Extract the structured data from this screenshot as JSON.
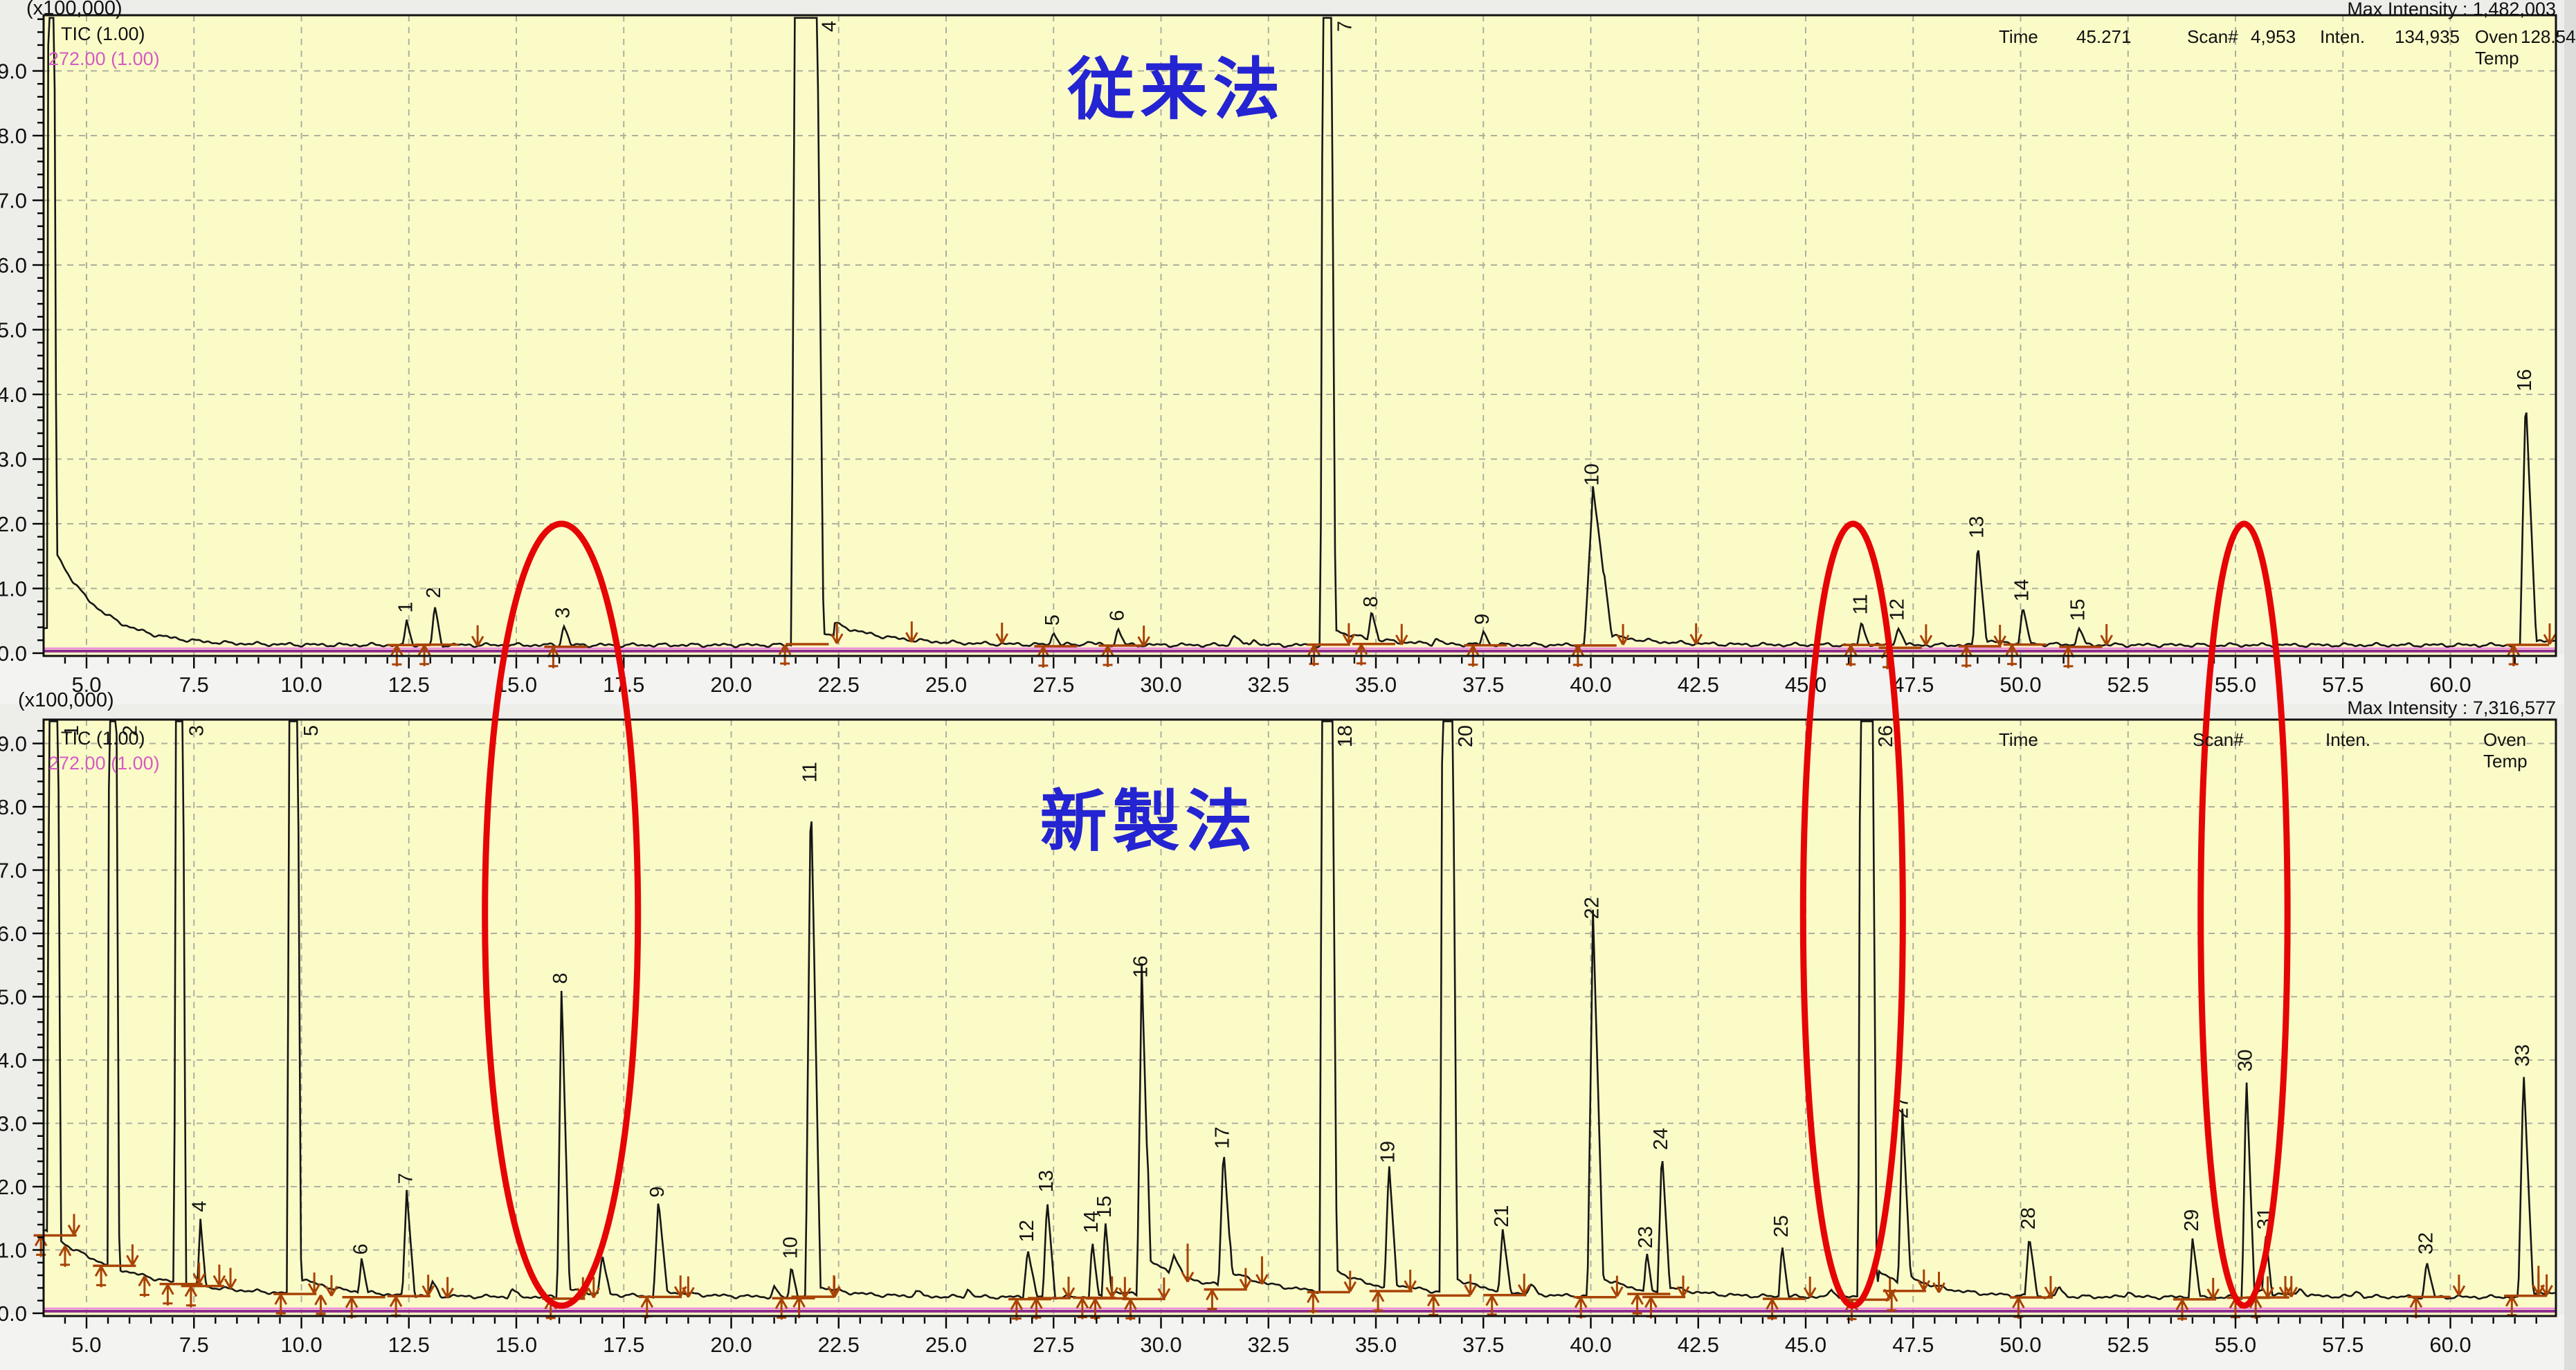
{
  "colors": {
    "plot_bg": "#FBFBC8",
    "outer_bg": "#EDEDEA",
    "strip_bg": "#F3F3F1",
    "grid": "#AFAF9E",
    "trace_black": "#161616",
    "mz_purple": "#8E2E8E",
    "mz_pink": "#EE8ADF",
    "marker_brown": "#A84305",
    "title_blue": "#2424D2",
    "highlight_red": "#E60505",
    "frame": "#111111"
  },
  "panels": [
    {
      "name": "conventional",
      "title": "従来法",
      "scale_label": "(x100,000)",
      "max_intensity": "Max Intensity : 1,482,003",
      "tic_label": "TIC (1.00)",
      "mz_label": "272.00 (1.00)",
      "info": {
        "time_label": "Time",
        "time_value": "45.271",
        "scan_label": "Scan#",
        "scan_value": "4,953",
        "inten_label": "Inten.",
        "inten_value": "134,935",
        "oven_label": "Oven Temp",
        "oven_value": "128.54"
      }
    },
    {
      "name": "new-method",
      "title": "新製法",
      "scale_label": "(x100,000)",
      "max_intensity": "Max Intensity : 7,316,577",
      "tic_label": "TIC (1.00)",
      "mz_label": "272.00 (1.00)",
      "info": {
        "time_label": "Time",
        "time_value": "",
        "scan_label": "Scan#",
        "scan_value": "",
        "inten_label": "Inten.",
        "inten_value": "",
        "oven_label": "Oven Temp",
        "oven_value": ""
      }
    }
  ],
  "x_axis": {
    "tick_labels": [
      "5.0",
      "7.5",
      "10.0",
      "12.5",
      "15.0",
      "17.5",
      "20.0",
      "22.5",
      "25.0",
      "27.5",
      "30.0",
      "32.5",
      "35.0",
      "37.5",
      "40.0",
      "42.5",
      "45.0",
      "47.5",
      "50.0",
      "52.5",
      "55.0",
      "57.5",
      "60.0"
    ],
    "minor_step": 0.5,
    "range": [
      4.0,
      62.45
    ]
  },
  "y_axis": {
    "tick_labels": [
      "0.0",
      "1.0",
      "2.0",
      "3.0",
      "4.0",
      "5.0",
      "6.0",
      "7.0",
      "8.0",
      "9.0"
    ],
    "minor_step": 0.2,
    "unit_label": "(x100,000)"
  },
  "highlights": {
    "note": "red ellipses spanning both chromatograms",
    "top_v": 2.0,
    "bottom_v": 0.12,
    "ellipses": [
      {
        "t_center": 16.05,
        "t_halfwidth": 1.78
      },
      {
        "t_center": 46.1,
        "t_halfwidth": 1.16
      },
      {
        "t_center": 55.2,
        "t_halfwidth": 1.01
      }
    ]
  },
  "chart_data": [
    {
      "type": "line",
      "title": "従来法",
      "y_scale_label": "(x100,000)",
      "max_intensity_value": "1,482,003",
      "x_range": [
        4.0,
        62.45
      ],
      "y_range": [
        0,
        9.82
      ],
      "grid": true,
      "baseline": {
        "level": 0.125,
        "solvent_amp": 1.6,
        "solvent_tau": 0.95,
        "solvent_t": 4.18,
        "start_level": 0.38,
        "lifts": [
          {
            "t": 22.4,
            "amp": 0.2,
            "tau": 1.5
          },
          {
            "t": 34.0,
            "amp": 0.07,
            "tau": 1.2
          },
          {
            "t": 40.3,
            "amp": 0.1,
            "tau": 1.2
          }
        ]
      },
      "peaks": [
        {
          "n": "",
          "t": 4.17,
          "clipped": true,
          "w": 0.05,
          "ft": 0.04
        },
        {
          "n": "1",
          "t": 12.45,
          "h": 0.38,
          "w": 0.08
        },
        {
          "n": "2",
          "t": 13.1,
          "h": 0.6,
          "w": 0.09
        },
        {
          "n": "3",
          "t": 16.1,
          "h": 0.32,
          "w": 0.09
        },
        {
          "n": "4",
          "t": 21.72,
          "clipped": true,
          "w": 0.12,
          "ft": 0.2,
          "tail": 0.3
        },
        {
          "n": "5",
          "t": 27.5,
          "h": 0.2,
          "w": 0.09
        },
        {
          "n": "6",
          "t": 29.0,
          "h": 0.26,
          "w": 0.09
        },
        {
          "n": "7",
          "t": 33.85,
          "clipped": true,
          "w": 0.08,
          "ft": 0.06,
          "tail": 0.2
        },
        {
          "n": "8",
          "t": 34.9,
          "h": 0.45,
          "w": 0.09
        },
        {
          "n": "9",
          "t": 37.5,
          "h": 0.2,
          "w": 0.09
        },
        {
          "n": "10",
          "t": 40.05,
          "h": 2.35,
          "w": 0.2,
          "fr": 2.2,
          "tail": 0.1
        },
        {
          "n": "11",
          "t": 46.3,
          "h": 0.35,
          "w": 0.1
        },
        {
          "n": "12",
          "t": 47.15,
          "h": 0.3,
          "w": 0.1
        },
        {
          "n": "13",
          "t": 49.0,
          "h": 1.55,
          "w": 0.11,
          "tail": 0.08
        },
        {
          "n": "14",
          "t": 50.05,
          "h": 0.55,
          "w": 0.1
        },
        {
          "n": "15",
          "t": 51.35,
          "h": 0.28,
          "w": 0.09
        },
        {
          "n": "16",
          "t": 61.75,
          "h": 3.8,
          "w": 0.13,
          "tail": 0.1
        },
        {
          "n": "",
          "t": 31.7,
          "h": 0.17,
          "w": 0.12
        },
        {
          "n": "",
          "t": 32.15,
          "h": 0.1,
          "w": 0.1
        },
        {
          "n": "",
          "t": 36.4,
          "h": 0.08,
          "w": 0.1
        },
        {
          "n": "",
          "t": 28.3,
          "h": 0.07,
          "w": 0.1
        }
      ],
      "extra_down_markers": [
        14.1,
        24.2,
        26.3,
        29.6,
        35.6,
        42.45,
        47.8,
        52.0
      ],
      "extra_up_markers": [],
      "drop_markers": []
    },
    {
      "type": "line",
      "title": "新製法",
      "y_scale_label": "(x100,000)",
      "max_intensity_value": "7,316,577",
      "x_range": [
        4.0,
        62.45
      ],
      "y_range": [
        0,
        9.35
      ],
      "grid": true,
      "baseline": {
        "level": 0.255,
        "solvent_amp": 1.05,
        "solvent_tau": 0.5,
        "solvent_t": 4.05,
        "start_level": 1.0,
        "lifts": [
          {
            "t": 29.7,
            "amp": 0.3,
            "tau": 2.2
          },
          {
            "t": 31.6,
            "amp": 0.12,
            "tau": 1.5
          },
          {
            "t": 34.0,
            "amp": 0.12,
            "tau": 1.5
          },
          {
            "t": 40.3,
            "amp": 0.1,
            "tau": 1.0
          },
          {
            "t": 46.7,
            "amp": 0.18,
            "tau": 1.2
          }
        ]
      },
      "peaks": [
        {
          "n": "1",
          "t": 4.22,
          "clipped": true,
          "w": 0.06,
          "ft": 0.07
        },
        {
          "n": "2",
          "t": 5.6,
          "clipped": true,
          "w": 0.06,
          "ft": 0.05
        },
        {
          "n": "3",
          "t": 7.15,
          "clipped": true,
          "w": 0.06,
          "ft": 0.05
        },
        {
          "n": "4",
          "t": 7.65,
          "h": 1.05,
          "w": 0.07
        },
        {
          "n": "5",
          "t": 9.8,
          "clipped": true,
          "w": 0.07,
          "ft": 0.06,
          "tail": 0.3
        },
        {
          "n": "6",
          "t": 11.4,
          "h": 0.55,
          "w": 0.08
        },
        {
          "n": "7",
          "t": 12.45,
          "h": 1.65,
          "w": 0.1
        },
        {
          "n": "8",
          "t": 16.05,
          "h": 4.85,
          "w": 0.1,
          "tail": 0.15
        },
        {
          "n": "9",
          "t": 18.3,
          "h": 1.45,
          "w": 0.11,
          "tail": 0.1
        },
        {
          "n": "10",
          "t": 21.4,
          "h": 0.5,
          "w": 0.08
        },
        {
          "n": "11",
          "t": 21.85,
          "h": 8.0,
          "w": 0.12,
          "tail": 0.2
        },
        {
          "n": "12",
          "t": 26.9,
          "h": 0.78,
          "w": 0.11
        },
        {
          "n": "13",
          "t": 27.35,
          "h": 1.55,
          "w": 0.1
        },
        {
          "n": "14",
          "t": 28.4,
          "h": 0.9,
          "w": 0.08
        },
        {
          "n": "15",
          "t": 28.7,
          "h": 1.15,
          "w": 0.08,
          "tail": 0.1
        },
        {
          "n": "16",
          "t": 29.55,
          "h": 4.95,
          "w": 0.11,
          "tail": 0.3
        },
        {
          "n": "17",
          "t": 31.45,
          "h": 2.1,
          "w": 0.11,
          "tail": 0.15
        },
        {
          "n": "18",
          "t": 33.85,
          "clipped": true,
          "w": 0.09,
          "ft": 0.07,
          "tail": 0.3
        },
        {
          "n": "19",
          "t": 35.3,
          "h": 1.9,
          "w": 0.1,
          "tail": 0.1
        },
        {
          "n": "20",
          "t": 36.65,
          "clipped": true,
          "w": 0.09,
          "ft": 0.07,
          "tail": 0.3
        },
        {
          "n": "21",
          "t": 37.95,
          "h": 0.95,
          "w": 0.1
        },
        {
          "n": "22",
          "t": 40.05,
          "h": 5.85,
          "w": 0.13,
          "tail": 0.25
        },
        {
          "n": "23",
          "t": 41.3,
          "h": 0.6,
          "w": 0.07
        },
        {
          "n": "24",
          "t": 41.65,
          "h": 2.2,
          "w": 0.1,
          "tail": 0.12
        },
        {
          "n": "25",
          "t": 44.45,
          "h": 0.85,
          "w": 0.08
        },
        {
          "n": "26",
          "t": 46.4,
          "clipped": true,
          "w": 0.08,
          "ft": 0.1,
          "tail": 0.3
        },
        {
          "n": "27",
          "t": 47.25,
          "h": 2.6,
          "w": 0.1,
          "tail": 0.15
        },
        {
          "n": "28",
          "t": 50.2,
          "h": 0.95,
          "w": 0.1
        },
        {
          "n": "29",
          "t": 54.0,
          "h": 0.95,
          "w": 0.09
        },
        {
          "n": "30",
          "t": 55.25,
          "h": 3.45,
          "w": 0.1,
          "tail": 0.12
        },
        {
          "n": "31",
          "t": 55.7,
          "h": 0.95,
          "w": 0.08
        },
        {
          "n": "32",
          "t": 59.45,
          "h": 0.55,
          "w": 0.1
        },
        {
          "n": "33",
          "t": 61.7,
          "h": 3.5,
          "w": 0.12,
          "tail": 0.1
        },
        {
          "n": "",
          "t": 13.05,
          "h": 0.22,
          "w": 0.1
        },
        {
          "n": "",
          "t": 14.9,
          "h": 0.12,
          "w": 0.1
        },
        {
          "n": "",
          "t": 17.0,
          "h": 0.6,
          "w": 0.1
        },
        {
          "n": "",
          "t": 21.0,
          "h": 0.15,
          "w": 0.08
        },
        {
          "n": "",
          "t": 24.3,
          "h": 0.1,
          "w": 0.1
        },
        {
          "n": "",
          "t": 25.5,
          "h": 0.12,
          "w": 0.1
        },
        {
          "n": "",
          "t": 30.3,
          "h": 0.3,
          "w": 0.12
        },
        {
          "n": "",
          "t": 38.6,
          "h": 0.15,
          "w": 0.1
        },
        {
          "n": "",
          "t": 45.6,
          "h": 0.12,
          "w": 0.1
        },
        {
          "n": "",
          "t": 50.9,
          "h": 0.15,
          "w": 0.1
        },
        {
          "n": "",
          "t": 52.5,
          "h": 0.1,
          "w": 0.1
        },
        {
          "n": "",
          "t": 56.5,
          "h": 0.12,
          "w": 0.1
        },
        {
          "n": "",
          "t": 57.8,
          "h": 0.1,
          "w": 0.1
        }
      ],
      "extra_down_markers": [
        8.35,
        10.7,
        13.4,
        16.8,
        19.0,
        22.4,
        45.1,
        48.1,
        56.3,
        60.2
      ],
      "extra_up_markers": [
        4.5,
        6.35,
        10.45
      ],
      "drop_markers": [
        {
          "t": 30.62,
          "v": 1.1
        },
        {
          "t": 32.35,
          "v": 0.9
        },
        {
          "t": 62.05,
          "v": 0.75
        }
      ]
    }
  ]
}
